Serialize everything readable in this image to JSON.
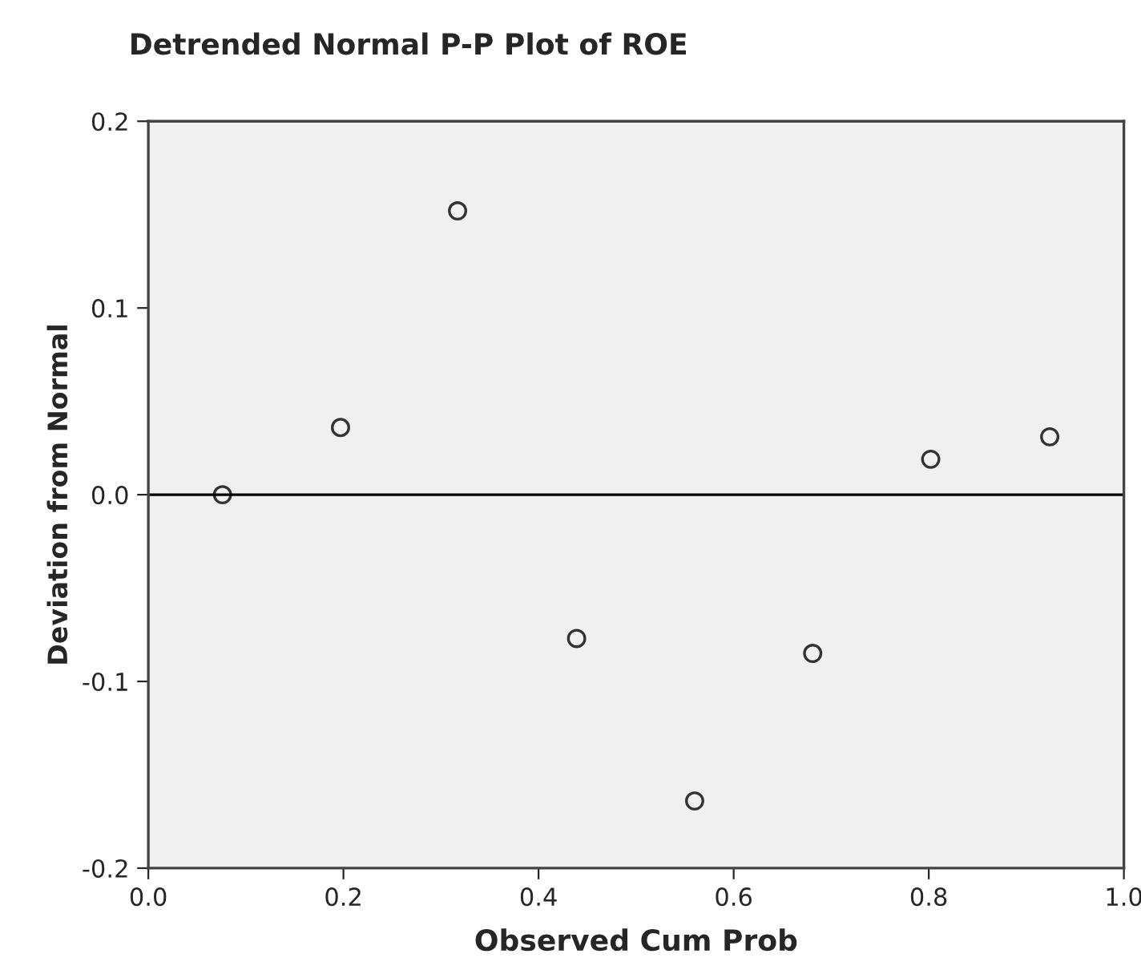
{
  "chart_data": {
    "type": "scatter",
    "title": "Detrended Normal P-P Plot of ROE",
    "xlabel": "Observed Cum Prob",
    "ylabel": "Deviation from Normal",
    "x": [
      0.076,
      0.197,
      0.317,
      0.439,
      0.56,
      0.681,
      0.802,
      0.924
    ],
    "series": [
      {
        "color": "#333333",
        "values": [
          0.0,
          0.036,
          0.152,
          -0.077,
          -0.164,
          -0.085,
          0.019,
          0.031
        ]
      }
    ],
    "xlim": [
      0.0,
      1.0
    ],
    "xticks": [
      {
        "value": 0.0,
        "label": "0.0"
      },
      {
        "value": 0.2,
        "label": "0.2"
      },
      {
        "value": 0.4,
        "label": "0.4"
      },
      {
        "value": 0.6,
        "label": "0.6"
      },
      {
        "value": 0.8,
        "label": "0.8"
      },
      {
        "value": 1.0,
        "label": "1.0"
      }
    ],
    "ylim": [
      -0.2,
      0.2
    ],
    "yticks": [
      {
        "value": -0.2,
        "label": "-0.2"
      },
      {
        "value": -0.1,
        "label": "-0.1"
      },
      {
        "value": 0.0,
        "label": "0.0"
      },
      {
        "value": 0.1,
        "label": "0.1"
      },
      {
        "value": 0.2,
        "label": "0.2"
      }
    ],
    "ref_lines": [
      {
        "axis": "y",
        "value": 0.0,
        "color": "#000000"
      }
    ],
    "marker": "circle",
    "grid": false,
    "legend": false
  }
}
